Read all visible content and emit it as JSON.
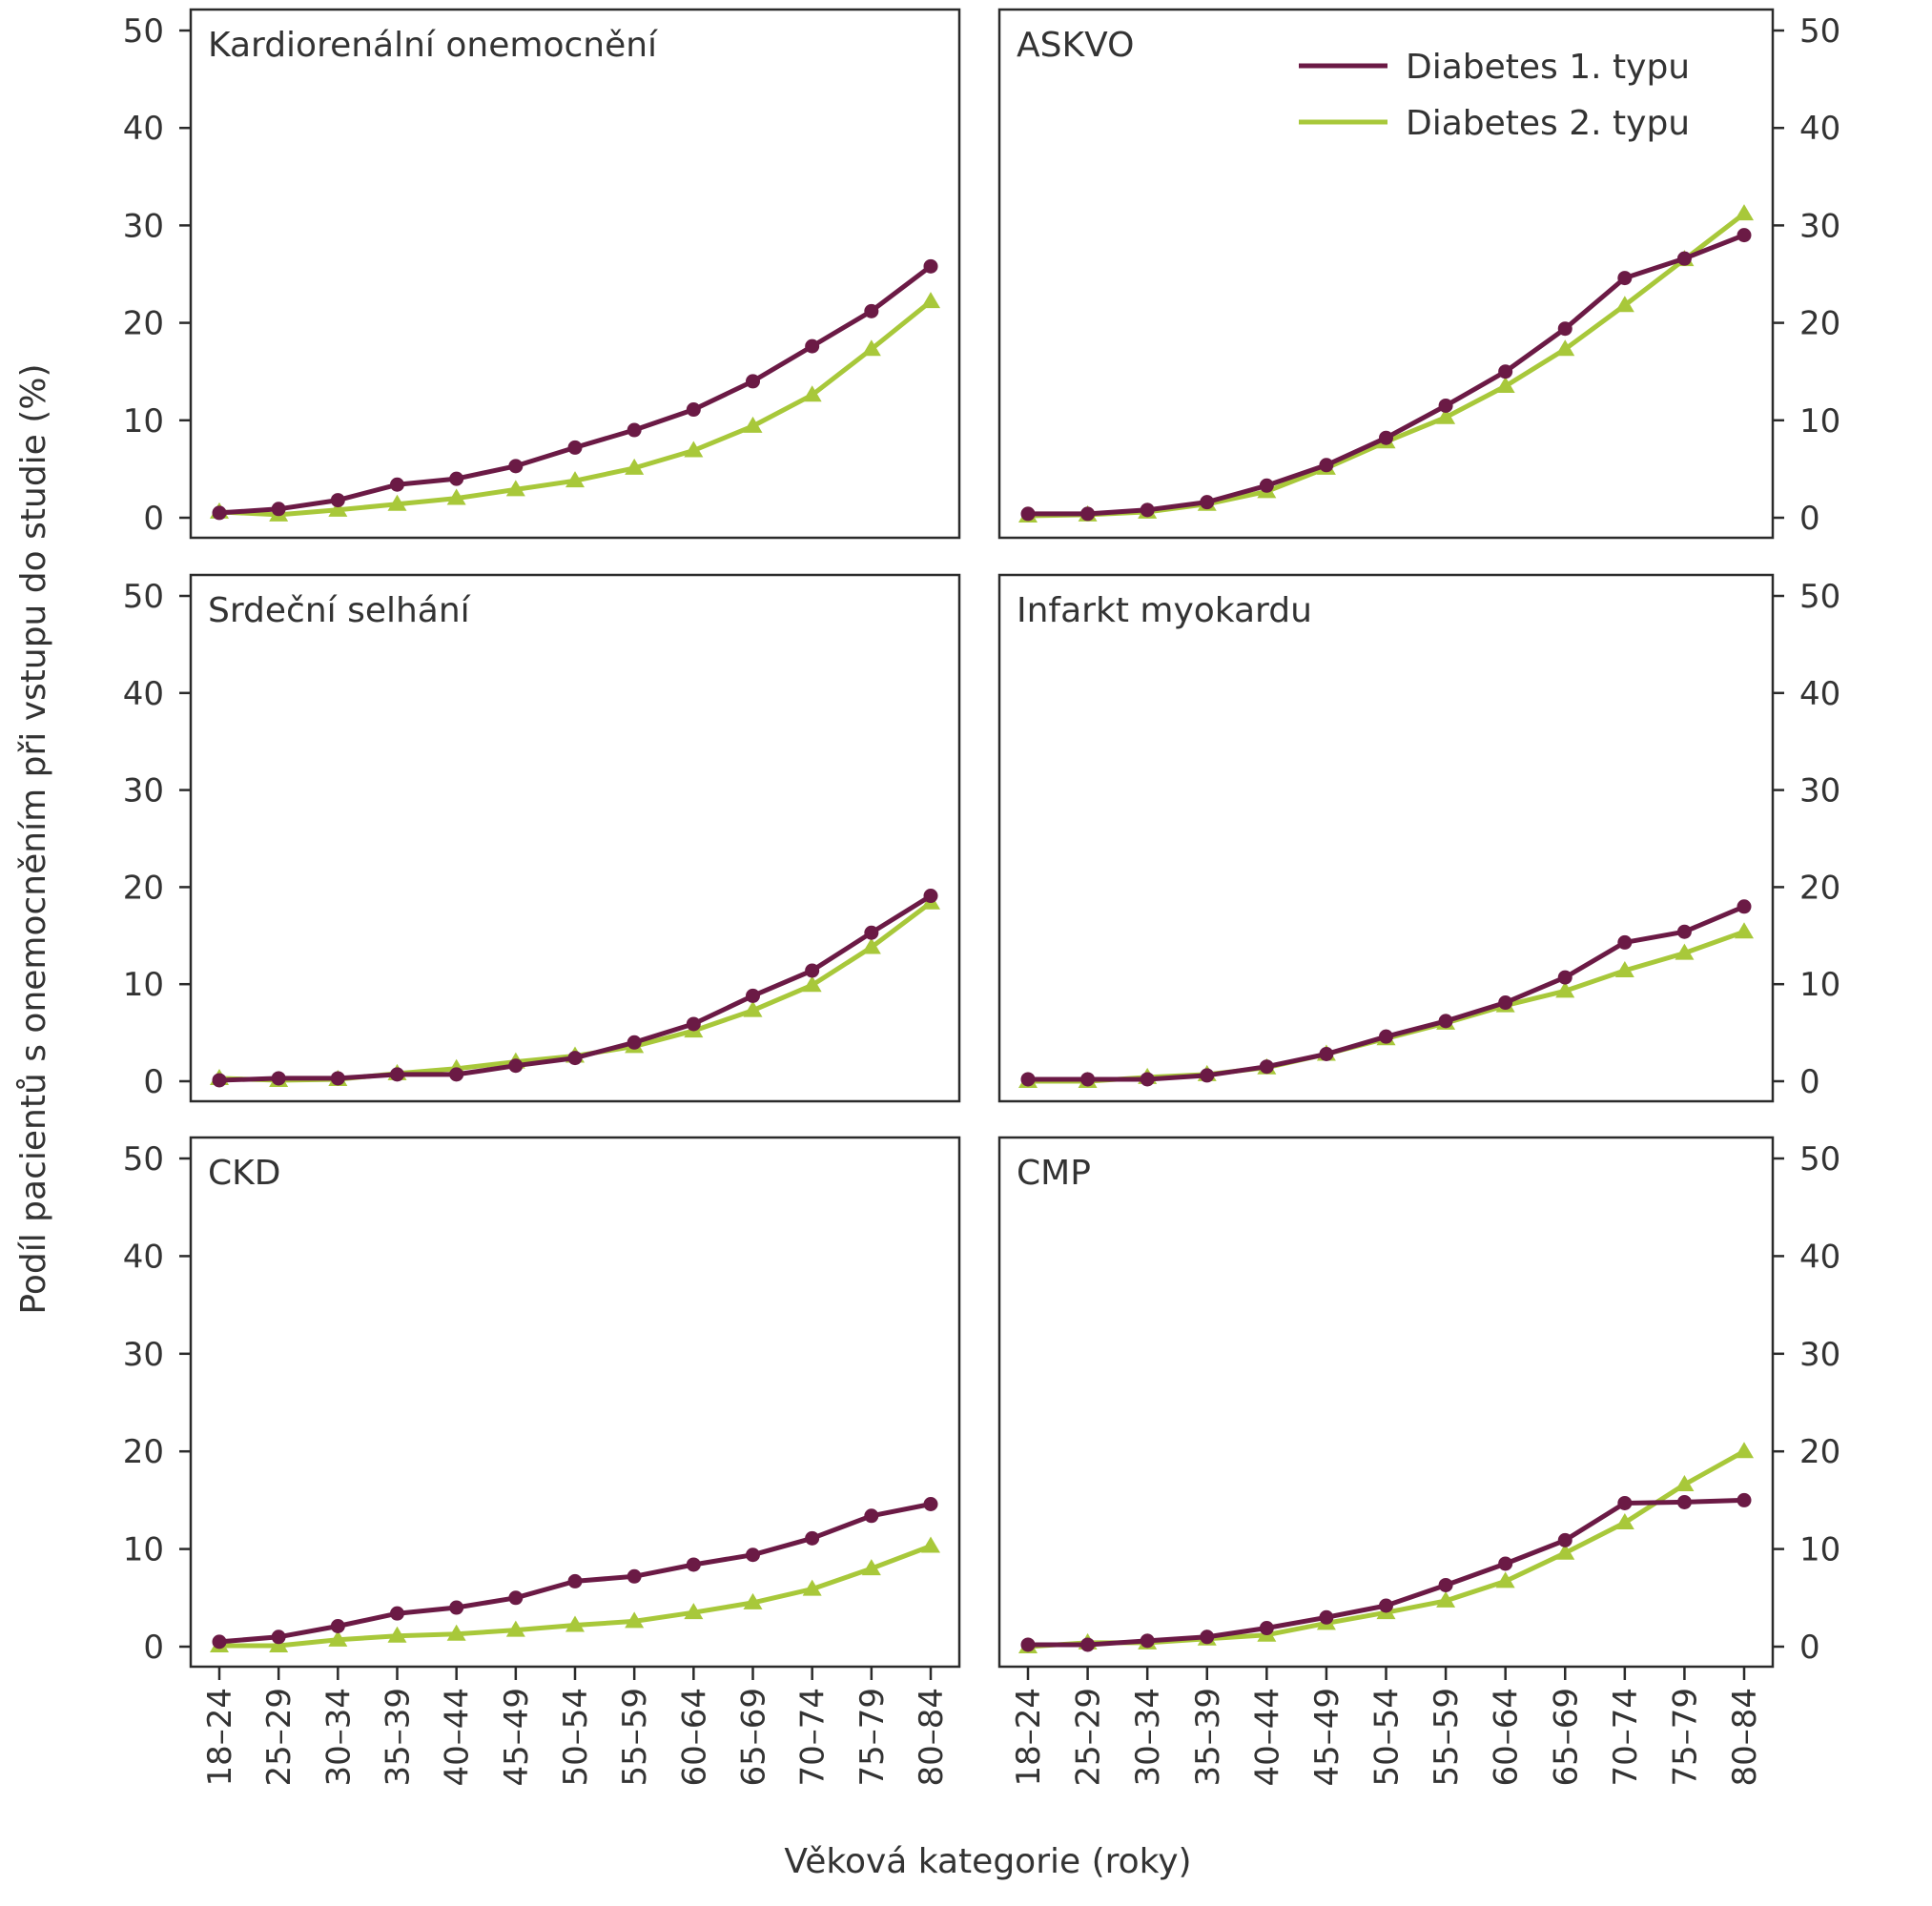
{
  "figure": {
    "ylabel": "Podíl pacientů s onemocněním při vstupu do studie (%)",
    "xlabel": "Věková kategorie (roky)"
  },
  "legend": {
    "placement": "top-right of ASKVO panel",
    "items": [
      {
        "label": "Diabetes 1. typu",
        "color": "#6b1a45",
        "marker": "circle"
      },
      {
        "label": "Diabetes 2. typu",
        "color": "#a8c83a",
        "marker": "triangle"
      }
    ]
  },
  "chart_data": [
    {
      "type": "line",
      "title": "Kardiorenální onemocnění",
      "categories": [
        "18–24",
        "25–29",
        "30–34",
        "35–39",
        "40–44",
        "45–49",
        "50–54",
        "55–59",
        "60–64",
        "65–69",
        "70–74",
        "75–79",
        "80–84"
      ],
      "ylim": [
        0,
        50
      ],
      "yticks": [
        0,
        10,
        20,
        30,
        40,
        50
      ],
      "grid": false,
      "series": [
        {
          "name": "Diabetes 1. typu",
          "color": "#6b1a45",
          "marker": "circle",
          "values": [
            0.5,
            0.9,
            1.8,
            3.4,
            4.0,
            5.3,
            7.2,
            9.0,
            11.1,
            14.0,
            17.6,
            21.2,
            25.8
          ]
        },
        {
          "name": "Diabetes 2. typu",
          "color": "#a8c83a",
          "marker": "triangle",
          "values": [
            0.6,
            0.3,
            0.8,
            1.4,
            2.0,
            2.9,
            3.8,
            5.1,
            6.9,
            9.4,
            12.6,
            17.3,
            22.2
          ]
        }
      ]
    },
    {
      "type": "line",
      "title": "ASKVO",
      "categories": [
        "18–24",
        "25–29",
        "30–34",
        "35–39",
        "40–44",
        "45–49",
        "50–54",
        "55–59",
        "60–64",
        "65–69",
        "70–74",
        "75–79",
        "80–84"
      ],
      "ylim": [
        0,
        50
      ],
      "yticks": [
        0,
        10,
        20,
        30,
        40,
        50
      ],
      "grid": false,
      "series": [
        {
          "name": "Diabetes 1. typu",
          "color": "#6b1a45",
          "marker": "circle",
          "values": [
            0.4,
            0.4,
            0.8,
            1.6,
            3.3,
            5.4,
            8.2,
            11.5,
            15.0,
            19.4,
            24.6,
            26.6,
            29.0
          ]
        },
        {
          "name": "Diabetes 2. typu",
          "color": "#a8c83a",
          "marker": "triangle",
          "values": [
            0.2,
            0.3,
            0.6,
            1.4,
            2.7,
            5.1,
            7.8,
            10.3,
            13.5,
            17.3,
            21.8,
            26.5,
            31.2
          ]
        }
      ]
    },
    {
      "type": "line",
      "title": "Srdeční selhání",
      "categories": [
        "18–24",
        "25–29",
        "30–34",
        "35–39",
        "40–44",
        "45–49",
        "50–54",
        "55–59",
        "60–64",
        "65–69",
        "70–74",
        "75–79",
        "80–84"
      ],
      "ylim": [
        0,
        50
      ],
      "yticks": [
        0,
        10,
        20,
        30,
        40,
        50
      ],
      "grid": false,
      "series": [
        {
          "name": "Diabetes 1. typu",
          "color": "#6b1a45",
          "marker": "circle",
          "values": [
            0.1,
            0.3,
            0.3,
            0.7,
            0.7,
            1.6,
            2.4,
            4.0,
            5.9,
            8.8,
            11.4,
            15.3,
            19.1
          ]
        },
        {
          "name": "Diabetes 2. typu",
          "color": "#a8c83a",
          "marker": "triangle",
          "values": [
            0.3,
            0.1,
            0.2,
            0.8,
            1.3,
            2.0,
            2.6,
            3.6,
            5.2,
            7.3,
            9.9,
            13.8,
            18.4
          ]
        }
      ]
    },
    {
      "type": "line",
      "title": "Infarkt myokardu",
      "categories": [
        "18–24",
        "25–29",
        "30–34",
        "35–39",
        "40–44",
        "45–49",
        "50–54",
        "55–59",
        "60–64",
        "65–69",
        "70–74",
        "75–79",
        "80–84"
      ],
      "ylim": [
        0,
        50
      ],
      "yticks": [
        0,
        10,
        20,
        30,
        40,
        50
      ],
      "grid": false,
      "series": [
        {
          "name": "Diabetes 1. typu",
          "color": "#6b1a45",
          "marker": "circle",
          "values": [
            0.2,
            0.2,
            0.2,
            0.6,
            1.5,
            2.8,
            4.6,
            6.2,
            8.1,
            10.7,
            14.3,
            15.4,
            18.0
          ]
        },
        {
          "name": "Diabetes 2. typu",
          "color": "#a8c83a",
          "marker": "triangle",
          "values": [
            0.0,
            0.0,
            0.4,
            0.7,
            1.4,
            2.8,
            4.4,
            6.0,
            7.8,
            9.3,
            11.4,
            13.2,
            15.4
          ]
        }
      ]
    },
    {
      "type": "line",
      "title": "CKD",
      "categories": [
        "18–24",
        "25–29",
        "30–34",
        "35–39",
        "40–44",
        "45–49",
        "50–54",
        "55–59",
        "60–64",
        "65–69",
        "70–74",
        "75–79",
        "80–84"
      ],
      "ylim": [
        0,
        50
      ],
      "yticks": [
        0,
        10,
        20,
        30,
        40,
        50
      ],
      "grid": false,
      "series": [
        {
          "name": "Diabetes 1. typu",
          "color": "#6b1a45",
          "marker": "circle",
          "values": [
            0.5,
            1.0,
            2.1,
            3.4,
            4.0,
            5.0,
            6.7,
            7.2,
            8.4,
            9.4,
            11.1,
            13.4,
            14.6
          ]
        },
        {
          "name": "Diabetes 2. typu",
          "color": "#a8c83a",
          "marker": "triangle",
          "values": [
            0.1,
            0.1,
            0.7,
            1.1,
            1.3,
            1.7,
            2.2,
            2.6,
            3.5,
            4.5,
            5.9,
            8.0,
            10.3
          ]
        }
      ]
    },
    {
      "type": "line",
      "title": "CMP",
      "categories": [
        "18–24",
        "25–29",
        "30–34",
        "35–39",
        "40–44",
        "45–49",
        "50–54",
        "55–59",
        "60–64",
        "65–69",
        "70–74",
        "75–79",
        "80–84"
      ],
      "ylim": [
        0,
        50
      ],
      "yticks": [
        0,
        10,
        20,
        30,
        40,
        50
      ],
      "grid": false,
      "series": [
        {
          "name": "Diabetes 1. typu",
          "color": "#6b1a45",
          "marker": "circle",
          "values": [
            0.2,
            0.2,
            0.6,
            1.0,
            1.9,
            3.0,
            4.2,
            6.3,
            8.5,
            10.9,
            14.7,
            14.8,
            15.0
          ]
        },
        {
          "name": "Diabetes 2. typu",
          "color": "#a8c83a",
          "marker": "triangle",
          "values": [
            0.0,
            0.4,
            0.4,
            0.8,
            1.2,
            2.4,
            3.5,
            4.7,
            6.7,
            9.6,
            12.7,
            16.6,
            20.0
          ]
        }
      ]
    }
  ]
}
